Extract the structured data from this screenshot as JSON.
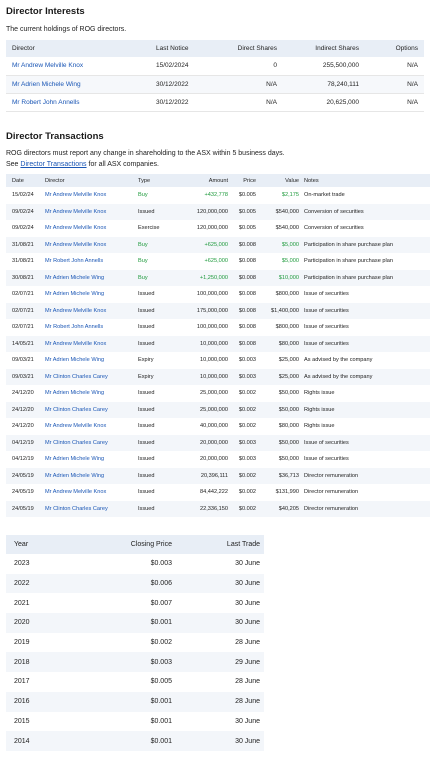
{
  "director_interests": {
    "title": "Director Interests",
    "intro": "The current holdings of ROG directors.",
    "columns": [
      "Director",
      "Last Notice",
      "Direct Shares",
      "Indirect Shares",
      "Options"
    ],
    "rows": [
      {
        "director": "Mr Andrew Melville Knox",
        "last_notice": "15/02/2024",
        "direct": "0",
        "indirect": "255,500,000",
        "options": "N/A"
      },
      {
        "director": "Mr Adrien Michele Wing",
        "last_notice": "30/12/2022",
        "direct": "N/A",
        "indirect": "78,240,111",
        "options": "N/A"
      },
      {
        "director": "Mr Robert John Annells",
        "last_notice": "30/12/2022",
        "direct": "N/A",
        "indirect": "20,625,000",
        "options": "N/A"
      }
    ]
  },
  "director_transactions": {
    "title": "Director Transactions",
    "intro_line1": "ROG directors must report any change in shareholding to the ASX within 5 business days.",
    "intro_see": "See",
    "intro_link": "Director Transactions",
    "intro_after": "for all ASX companies.",
    "columns": [
      "Date",
      "Director",
      "Type",
      "Amount",
      "Price",
      "Value",
      "Notes"
    ],
    "rows": [
      {
        "date": "15/02/24",
        "director": "Mr Andrew Melville Knox",
        "type": "Buy",
        "amount": "+432,778",
        "price": "$0.005",
        "value": "$2,175",
        "notes": "On-market trade",
        "buy": true
      },
      {
        "date": "09/02/24",
        "director": "Mr Andrew Melville Knox",
        "type": "Issued",
        "amount": "120,000,000",
        "price": "$0.005",
        "value": "$540,000",
        "notes": "Conversion of securities",
        "buy": false
      },
      {
        "date": "09/02/24",
        "director": "Mr Andrew Melville Knox",
        "type": "Exercise",
        "amount": "120,000,000",
        "price": "$0.005",
        "value": "$540,000",
        "notes": "Conversion of securities",
        "buy": false
      },
      {
        "date": "31/08/21",
        "director": "Mr Andrew Melville Knox",
        "type": "Buy",
        "amount": "+625,000",
        "price": "$0.008",
        "value": "$5,000",
        "notes": "Participation in share purchase plan",
        "buy": true
      },
      {
        "date": "31/08/21",
        "director": "Mr Robert John Annells",
        "type": "Buy",
        "amount": "+625,000",
        "price": "$0.008",
        "value": "$5,000",
        "notes": "Participation in share purchase plan",
        "buy": true
      },
      {
        "date": "30/08/21",
        "director": "Mr Adrien Michele Wing",
        "type": "Buy",
        "amount": "+1,250,000",
        "price": "$0.008",
        "value": "$10,000",
        "notes": "Participation in share purchase plan",
        "buy": true
      },
      {
        "date": "02/07/21",
        "director": "Mr Adrien Michele Wing",
        "type": "Issued",
        "amount": "100,000,000",
        "price": "$0.008",
        "value": "$800,000",
        "notes": "Issue of securities",
        "buy": false
      },
      {
        "date": "02/07/21",
        "director": "Mr Andrew Melville Knox",
        "type": "Issued",
        "amount": "175,000,000",
        "price": "$0.008",
        "value": "$1,400,000",
        "notes": "Issue of securities",
        "buy": false
      },
      {
        "date": "02/07/21",
        "director": "Mr Robert John Annells",
        "type": "Issued",
        "amount": "100,000,000",
        "price": "$0.008",
        "value": "$800,000",
        "notes": "Issue of securities",
        "buy": false
      },
      {
        "date": "14/05/21",
        "director": "Mr Andrew Melville Knox",
        "type": "Issued",
        "amount": "10,000,000",
        "price": "$0.008",
        "value": "$80,000",
        "notes": "Issue of securities",
        "buy": false
      },
      {
        "date": "09/03/21",
        "director": "Mr Adrien Michele Wing",
        "type": "Expiry",
        "amount": "10,000,000",
        "price": "$0.003",
        "value": "$25,000",
        "notes": "As advised by the company",
        "buy": false
      },
      {
        "date": "09/03/21",
        "director": "Mr Clinton Charles Carey",
        "type": "Expiry",
        "amount": "10,000,000",
        "price": "$0.003",
        "value": "$25,000",
        "notes": "As advised by the company",
        "buy": false
      },
      {
        "date": "24/12/20",
        "director": "Mr Adrien Michele Wing",
        "type": "Issued",
        "amount": "25,000,000",
        "price": "$0.002",
        "value": "$50,000",
        "notes": "Rights issue",
        "buy": false
      },
      {
        "date": "24/12/20",
        "director": "Mr Clinton Charles Carey",
        "type": "Issued",
        "amount": "25,000,000",
        "price": "$0.002",
        "value": "$50,000",
        "notes": "Rights issue",
        "buy": false
      },
      {
        "date": "24/12/20",
        "director": "Mr Andrew Melville Knox",
        "type": "Issued",
        "amount": "40,000,000",
        "price": "$0.002",
        "value": "$80,000",
        "notes": "Rights issue",
        "buy": false
      },
      {
        "date": "04/12/19",
        "director": "Mr Clinton Charles Carey",
        "type": "Issued",
        "amount": "20,000,000",
        "price": "$0.003",
        "value": "$50,000",
        "notes": "Issue of securities",
        "buy": false
      },
      {
        "date": "04/12/19",
        "director": "Mr Adrien Michele Wing",
        "type": "Issued",
        "amount": "20,000,000",
        "price": "$0.003",
        "value": "$50,000",
        "notes": "Issue of securities",
        "buy": false
      },
      {
        "date": "24/05/19",
        "director": "Mr Adrien Michele Wing",
        "type": "Issued",
        "amount": "20,396,111",
        "price": "$0.002",
        "value": "$36,713",
        "notes": "Director remuneration",
        "buy": false
      },
      {
        "date": "24/05/19",
        "director": "Mr Andrew Melville Knox",
        "type": "Issued",
        "amount": "84,442,222",
        "price": "$0.002",
        "value": "$131,990",
        "notes": "Director remuneration",
        "buy": false
      },
      {
        "date": "24/05/19",
        "director": "Mr Clinton Charles Carey",
        "type": "Issued",
        "amount": "22,336,150",
        "price": "$0.002",
        "value": "$40,205",
        "notes": "Director remuneration",
        "buy": false
      }
    ]
  },
  "closing_prices": {
    "columns": [
      "Year",
      "Closing Price",
      "Last Trade"
    ],
    "rows": [
      {
        "year": "2023",
        "price": "$0.003",
        "last_trade": "30 June"
      },
      {
        "year": "2022",
        "price": "$0.006",
        "last_trade": "30 June"
      },
      {
        "year": "2021",
        "price": "$0.007",
        "last_trade": "30 June"
      },
      {
        "year": "2020",
        "price": "$0.001",
        "last_trade": "30 June"
      },
      {
        "year": "2019",
        "price": "$0.002",
        "last_trade": "28 June"
      },
      {
        "year": "2018",
        "price": "$0.003",
        "last_trade": "29 June"
      },
      {
        "year": "2017",
        "price": "$0.005",
        "last_trade": "28 June"
      },
      {
        "year": "2016",
        "price": "$0.001",
        "last_trade": "28 June"
      },
      {
        "year": "2015",
        "price": "$0.001",
        "last_trade": "30 June"
      },
      {
        "year": "2014",
        "price": "$0.001",
        "last_trade": "30 June"
      }
    ]
  },
  "colors": {
    "link": "#1a56b5",
    "positive": "#1e9a3c",
    "header_bg": "#e8eef6"
  }
}
